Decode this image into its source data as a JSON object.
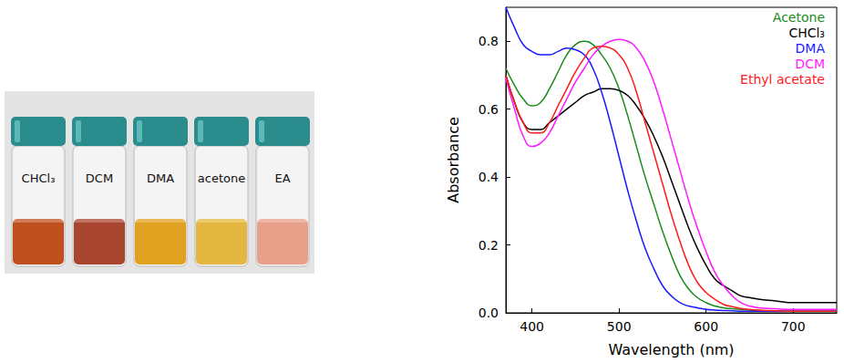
{
  "photo": {
    "vials": [
      {
        "label": "CHCl₃",
        "color": "#c0501e"
      },
      {
        "label": "DCM",
        "color": "#a8452f"
      },
      {
        "label": "DMA",
        "color": "#e0a020"
      },
      {
        "label": "acetone",
        "color": "#e4b840"
      },
      {
        "label": "EA",
        "color": "#e8a08a"
      }
    ]
  },
  "chart_data": {
    "type": "line",
    "x_label": "Wavelength (nm)",
    "y_label": "Absorbance",
    "xlim": [
      370,
      750
    ],
    "xticks": [
      400,
      500,
      600,
      700
    ],
    "ylim": [
      0,
      0.9
    ],
    "yticks": [
      {
        "value": 0,
        "label": "0.0"
      },
      0.2,
      0.4,
      0.6,
      0.8
    ],
    "grid": false,
    "legend": "top-right",
    "x": [
      370,
      380,
      390,
      400,
      410,
      420,
      430,
      440,
      450,
      460,
      470,
      480,
      490,
      500,
      510,
      520,
      530,
      540,
      550,
      560,
      570,
      580,
      590,
      600,
      610,
      620,
      630,
      640,
      650,
      660,
      680,
      700,
      720,
      750
    ],
    "series": [
      {
        "name": "Acetone",
        "color": "#1a8a1a",
        "values": [
          0.72,
          0.67,
          0.63,
          0.61,
          0.62,
          0.66,
          0.71,
          0.76,
          0.79,
          0.8,
          0.79,
          0.76,
          0.72,
          0.66,
          0.58,
          0.49,
          0.4,
          0.32,
          0.24,
          0.17,
          0.11,
          0.07,
          0.045,
          0.03,
          0.02,
          0.015,
          0.012,
          0.01,
          0.008,
          0.007,
          0.006,
          0.005,
          0.005,
          0.005
        ]
      },
      {
        "name": "CHCl₃",
        "color": "#000000",
        "values": [
          0.7,
          0.62,
          0.56,
          0.54,
          0.54,
          0.56,
          0.58,
          0.6,
          0.62,
          0.64,
          0.65,
          0.66,
          0.66,
          0.655,
          0.64,
          0.61,
          0.57,
          0.52,
          0.46,
          0.39,
          0.32,
          0.25,
          0.19,
          0.14,
          0.1,
          0.08,
          0.065,
          0.05,
          0.045,
          0.04,
          0.035,
          0.03,
          0.03,
          0.03
        ]
      },
      {
        "name": "DMA",
        "color": "#1a1aff",
        "values": [
          0.9,
          0.84,
          0.79,
          0.77,
          0.76,
          0.76,
          0.77,
          0.78,
          0.775,
          0.76,
          0.72,
          0.65,
          0.56,
          0.46,
          0.36,
          0.27,
          0.19,
          0.13,
          0.08,
          0.05,
          0.03,
          0.02,
          0.015,
          0.01,
          0.008,
          0.007,
          0.006,
          0.005,
          0.005,
          0.005,
          0.005,
          0.005,
          0.005,
          0.005
        ]
      },
      {
        "name": "DCM",
        "color": "#ff1aff",
        "values": [
          0.69,
          0.6,
          0.52,
          0.49,
          0.5,
          0.53,
          0.58,
          0.63,
          0.68,
          0.72,
          0.76,
          0.785,
          0.8,
          0.805,
          0.8,
          0.78,
          0.74,
          0.68,
          0.6,
          0.51,
          0.42,
          0.33,
          0.25,
          0.18,
          0.12,
          0.08,
          0.05,
          0.03,
          0.02,
          0.015,
          0.012,
          0.01,
          0.01,
          0.01
        ]
      },
      {
        "name": "Ethyl acetate",
        "color": "#ff1a1a",
        "values": [
          0.7,
          0.62,
          0.56,
          0.53,
          0.53,
          0.56,
          0.61,
          0.66,
          0.71,
          0.75,
          0.78,
          0.785,
          0.78,
          0.76,
          0.72,
          0.65,
          0.56,
          0.47,
          0.38,
          0.29,
          0.21,
          0.14,
          0.09,
          0.06,
          0.04,
          0.025,
          0.018,
          0.013,
          0.01,
          0.008,
          0.006,
          0.005,
          0.005,
          0.005
        ]
      }
    ]
  }
}
